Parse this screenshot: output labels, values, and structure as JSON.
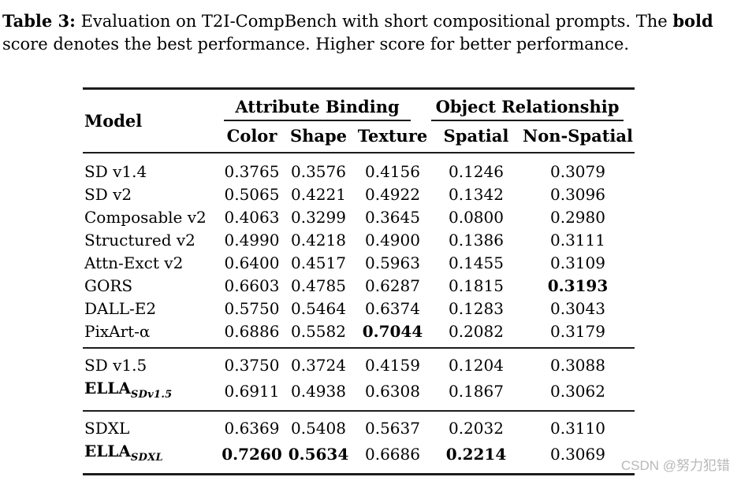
{
  "caption": {
    "lines": [
      {
        "segments": [
          {
            "text": "Table 3:",
            "bold": true
          },
          {
            "text": " Evaluation on T2I-CompBench with short compositional prompts. The ",
            "bold": false
          },
          {
            "text": "bold",
            "bold": true
          }
        ]
      },
      {
        "segments": [
          {
            "text": "score denotes the best performance. Higher score for better performance.",
            "bold": false
          }
        ]
      }
    ]
  },
  "table": {
    "model_header": "Model",
    "column_groups": [
      {
        "label": "Attribute Binding",
        "span": 3
      },
      {
        "label": "Object Relationship",
        "span": 2
      }
    ],
    "sub_headers": [
      "Color",
      "Shape",
      "Texture",
      "Spatial",
      "Non-Spatial"
    ],
    "groups": [
      {
        "rows": [
          {
            "model": "SD v1.4",
            "subscript": "",
            "model_bold": false,
            "values": [
              "0.3765",
              "0.3576",
              "0.4156",
              "0.1246",
              "0.3079"
            ],
            "bold": [
              false,
              false,
              false,
              false,
              false
            ]
          },
          {
            "model": "SD v2",
            "subscript": "",
            "model_bold": false,
            "values": [
              "0.5065",
              "0.4221",
              "0.4922",
              "0.1342",
              "0.3096"
            ],
            "bold": [
              false,
              false,
              false,
              false,
              false
            ]
          },
          {
            "model": "Composable v2",
            "subscript": "",
            "model_bold": false,
            "values": [
              "0.4063",
              "0.3299",
              "0.3645",
              "0.0800",
              "0.2980"
            ],
            "bold": [
              false,
              false,
              false,
              false,
              false
            ]
          },
          {
            "model": "Structured v2",
            "subscript": "",
            "model_bold": false,
            "values": [
              "0.4990",
              "0.4218",
              "0.4900",
              "0.1386",
              "0.3111"
            ],
            "bold": [
              false,
              false,
              false,
              false,
              false
            ]
          },
          {
            "model": "Attn-Exct v2",
            "subscript": "",
            "model_bold": false,
            "values": [
              "0.6400",
              "0.4517",
              "0.5963",
              "0.1455",
              "0.3109"
            ],
            "bold": [
              false,
              false,
              false,
              false,
              false
            ]
          },
          {
            "model": "GORS",
            "subscript": "",
            "model_bold": false,
            "values": [
              "0.6603",
              "0.4785",
              "0.6287",
              "0.1815",
              "0.3193"
            ],
            "bold": [
              false,
              false,
              false,
              false,
              true
            ]
          },
          {
            "model": "DALL-E2",
            "subscript": "",
            "model_bold": false,
            "values": [
              "0.5750",
              "0.5464",
              "0.6374",
              "0.1283",
              "0.3043"
            ],
            "bold": [
              false,
              false,
              false,
              false,
              false
            ]
          },
          {
            "model": "PixArt-α",
            "subscript": "",
            "model_bold": false,
            "values": [
              "0.6886",
              "0.5582",
              "0.7044",
              "0.2082",
              "0.3179"
            ],
            "bold": [
              false,
              false,
              true,
              false,
              false
            ]
          }
        ]
      },
      {
        "rows": [
          {
            "model": "SD v1.5",
            "subscript": "",
            "model_bold": false,
            "values": [
              "0.3750",
              "0.3724",
              "0.4159",
              "0.1204",
              "0.3088"
            ],
            "bold": [
              false,
              false,
              false,
              false,
              false
            ]
          },
          {
            "model": "ELLA",
            "subscript": "SDv1.5",
            "model_bold": true,
            "values": [
              "0.6911",
              "0.4938",
              "0.6308",
              "0.1867",
              "0.3062"
            ],
            "bold": [
              false,
              false,
              false,
              false,
              false
            ]
          }
        ]
      },
      {
        "rows": [
          {
            "model": "SDXL",
            "subscript": "",
            "model_bold": false,
            "values": [
              "0.6369",
              "0.5408",
              "0.5637",
              "0.2032",
              "0.3110"
            ],
            "bold": [
              false,
              false,
              false,
              false,
              false
            ]
          },
          {
            "model": "ELLA",
            "subscript": "SDXL",
            "model_bold": true,
            "values": [
              "0.7260",
              "0.5634",
              "0.6686",
              "0.2214",
              "0.3069"
            ],
            "bold": [
              true,
              true,
              false,
              true,
              false
            ]
          }
        ]
      }
    ]
  },
  "watermark": {
    "text": "CSDN @努力犯错"
  },
  "colors": {
    "text": "#000000",
    "rule": "#1c1c1c",
    "background": "#ffffff",
    "watermark": "#b8b8b8"
  }
}
